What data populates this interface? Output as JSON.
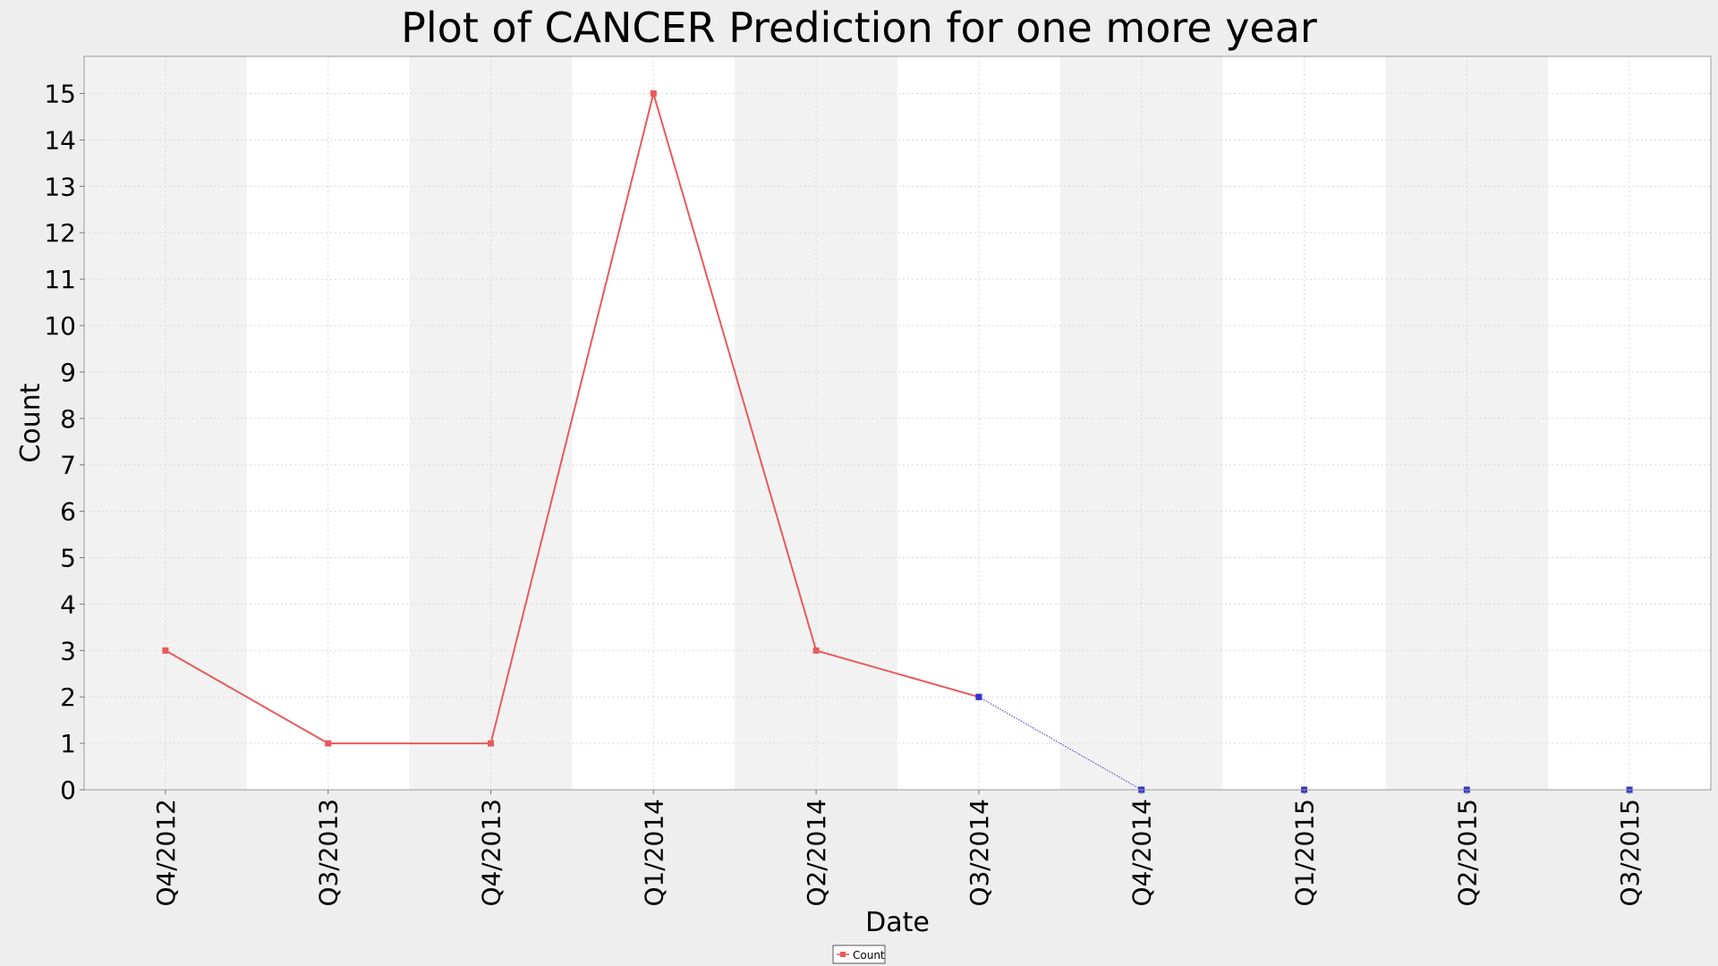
{
  "chart_data": {
    "type": "line",
    "title": "Plot of CANCER Prediction for one more year",
    "xlabel": "Date",
    "ylabel": "Count",
    "categories": [
      "Q4/2012",
      "Q3/2013",
      "Q4/2013",
      "Q1/2014",
      "Q2/2014",
      "Q3/2014",
      "Q4/2014",
      "Q1/2015",
      "Q2/2015",
      "Q3/2015"
    ],
    "series": [
      {
        "name": "Count",
        "color": "#e85a5a",
        "style": "solid",
        "marker": "square",
        "x": [
          "Q4/2012",
          "Q3/2013",
          "Q4/2013",
          "Q1/2014",
          "Q2/2014",
          "Q3/2014"
        ],
        "values": [
          3,
          1,
          1,
          15,
          3,
          2
        ]
      },
      {
        "color": "#3333cc",
        "style": "dotted",
        "marker": "square",
        "x": [
          "Q3/2014",
          "Q4/2014",
          "Q1/2015",
          "Q2/2015",
          "Q3/2015"
        ],
        "values": [
          2,
          0,
          0,
          0,
          0
        ]
      }
    ],
    "ylim": [
      0,
      15.8
    ],
    "yticks": [
      0,
      1,
      2,
      3,
      4,
      5,
      6,
      7,
      8,
      9,
      10,
      11,
      12,
      13,
      14,
      15
    ],
    "grid": true,
    "alternating_bands": true,
    "band_color": "#f2f2f2",
    "legend_position": "bottom-center"
  },
  "legend": {
    "label": "Count",
    "color": "#e85a5a"
  }
}
